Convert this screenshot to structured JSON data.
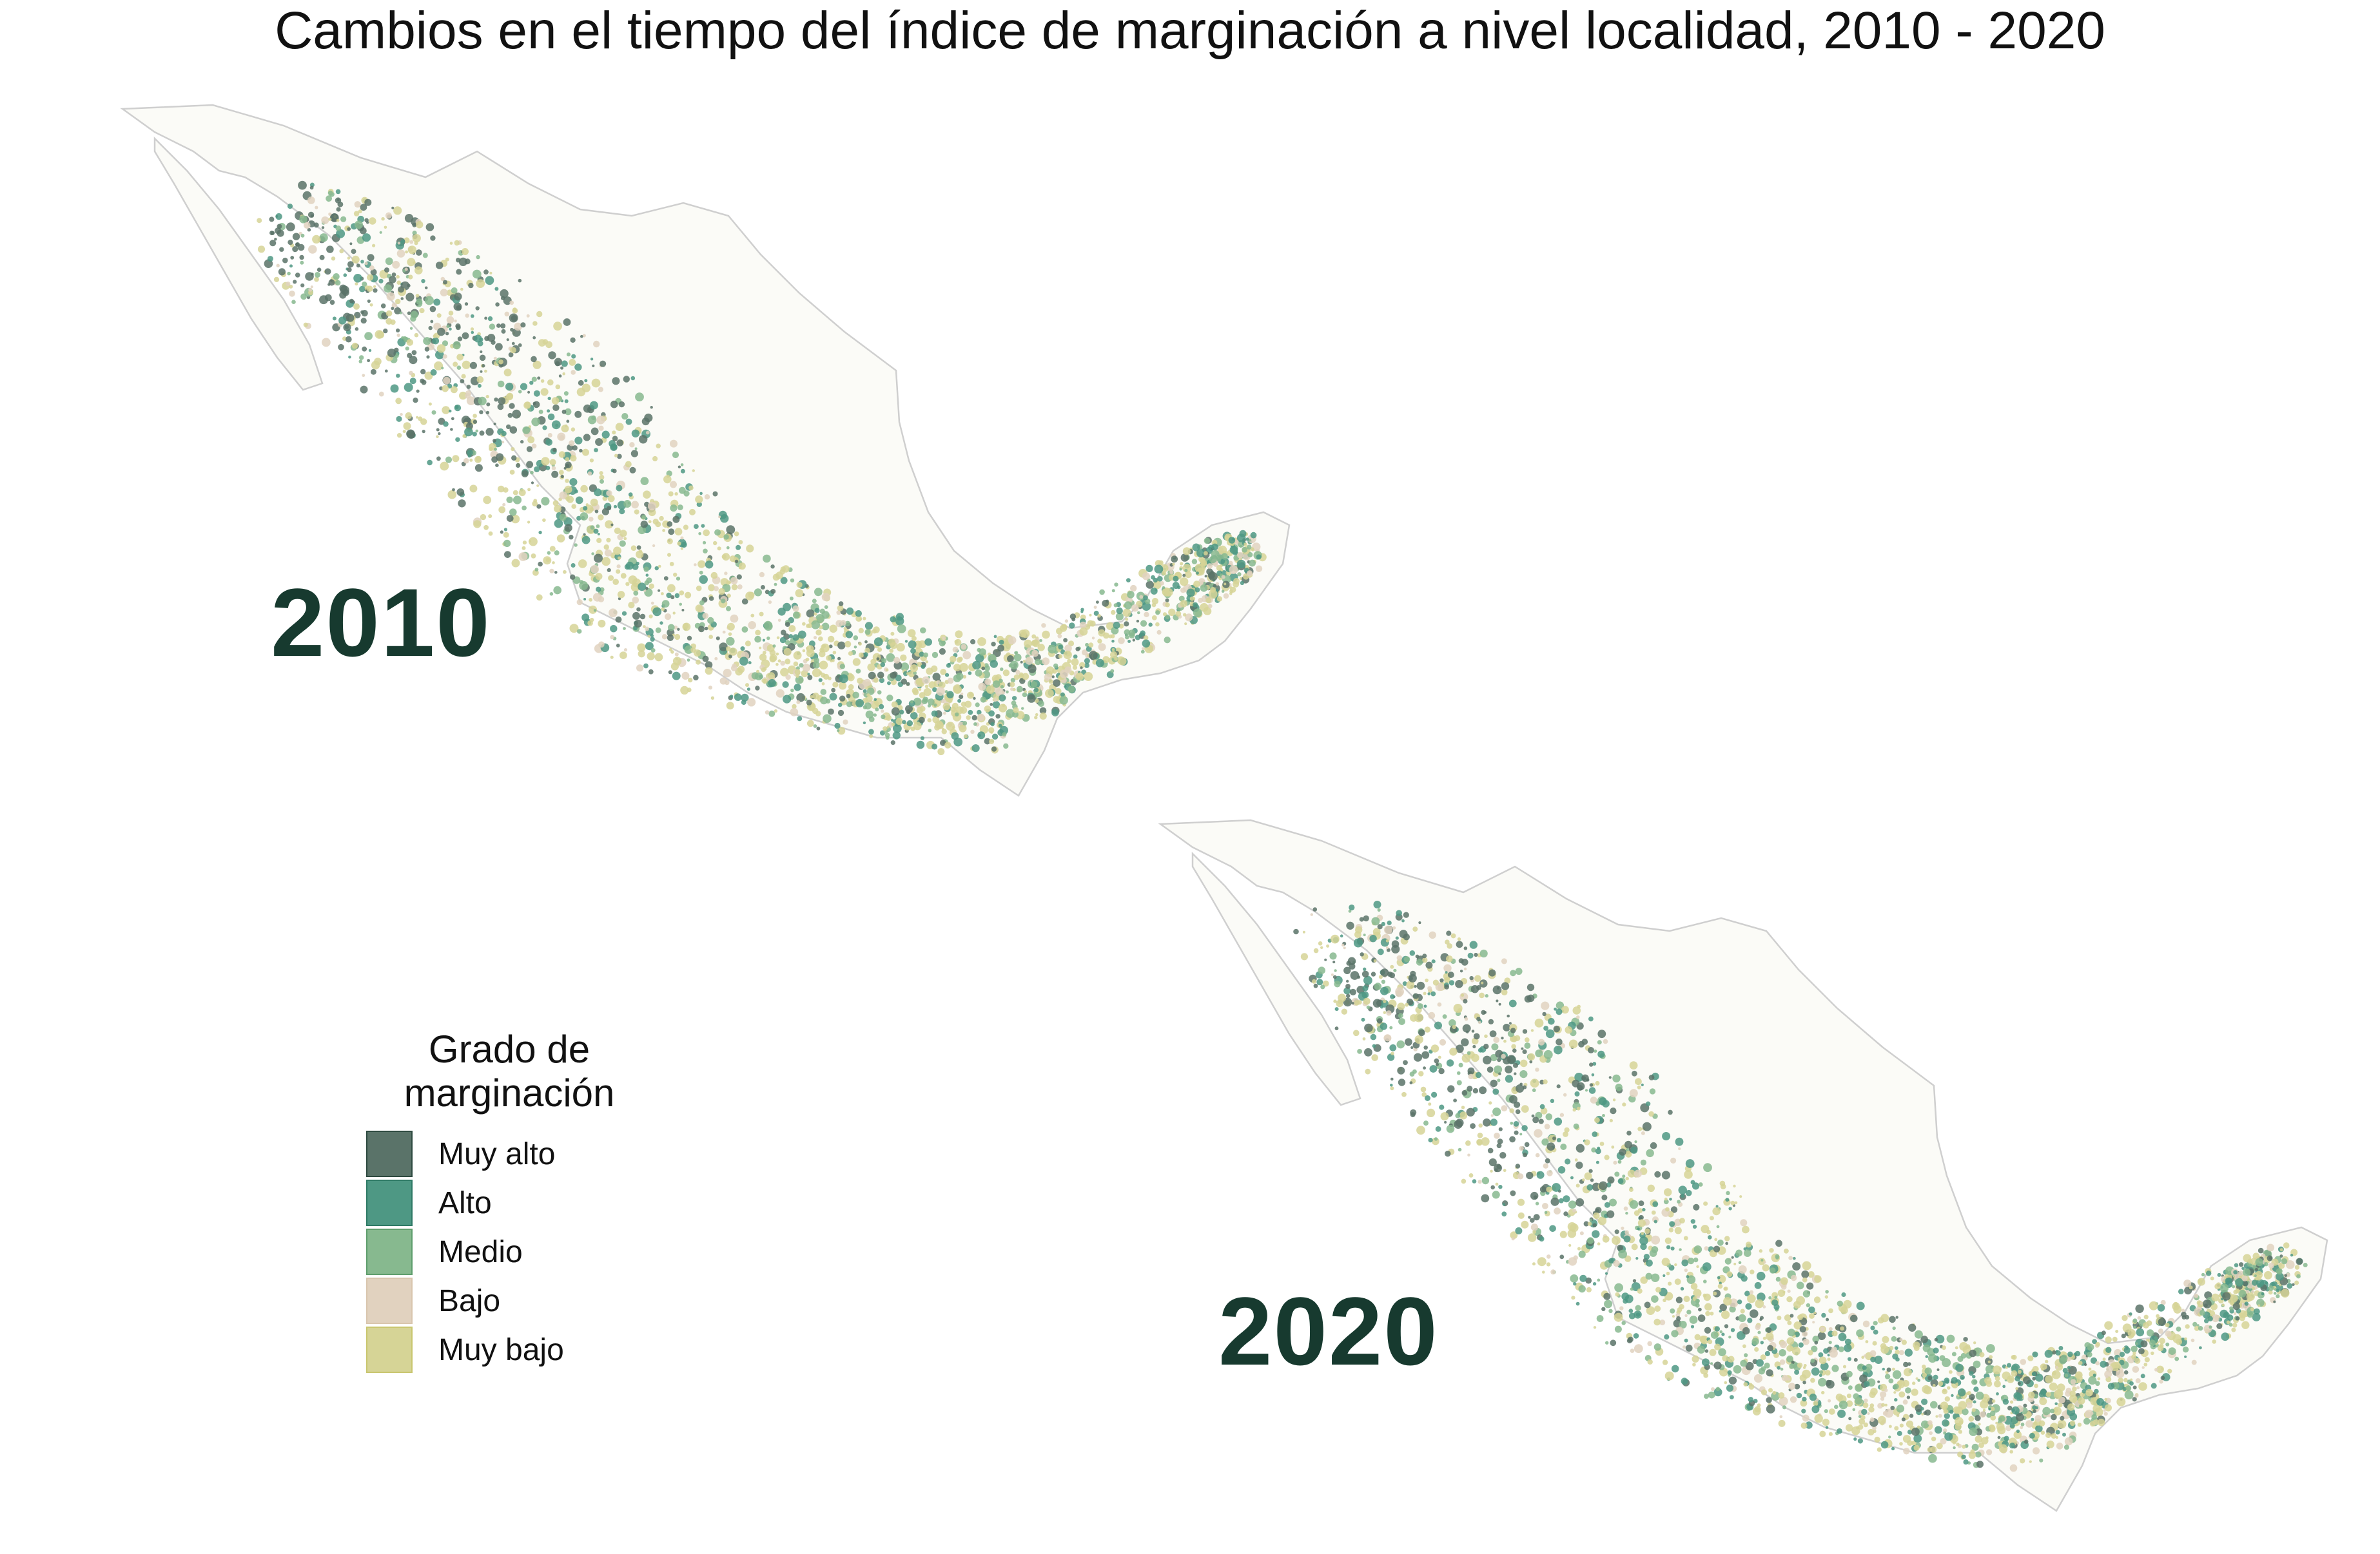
{
  "title": "Cambios en el tiempo del índice de marginación a nivel localidad, 2010 - 2020",
  "maps": [
    {
      "year_label": "2010"
    },
    {
      "year_label": "2020"
    }
  ],
  "legend": {
    "title_line1": "Grado de",
    "title_line2": "marginación",
    "items": [
      {
        "label": "Muy alto",
        "color": "#5a7369",
        "border": "#2e4a40"
      },
      {
        "label": "Alto",
        "color": "#4e9884",
        "border": "#2f7a66"
      },
      {
        "label": "Medio",
        "color": "#87b98f",
        "border": "#5f9e6d"
      },
      {
        "label": "Bajo",
        "color": "#e1d2bf",
        "border": "#d9c6ae"
      },
      {
        "label": "Muy bajo",
        "color": "#d6d496",
        "border": "#c9c66f"
      }
    ]
  },
  "colors": {
    "year_text": "#173a2f",
    "outline": "#cfcfcf"
  }
}
